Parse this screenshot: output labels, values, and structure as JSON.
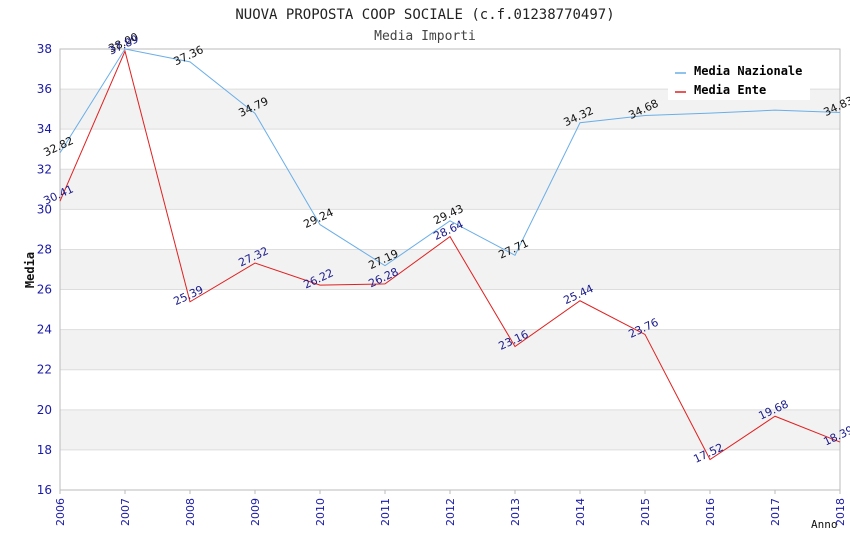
{
  "chart_data": {
    "type": "line",
    "title": "NUOVA PROPOSTA COOP SOCIALE (c.f.01238770497)",
    "subtitle": "Media Importi",
    "xlabel": "Anno",
    "ylabel": "Media",
    "ylim": [
      16,
      38
    ],
    "yticks": [
      "16",
      "18",
      "20",
      "22",
      "24",
      "26",
      "28",
      "30",
      "32",
      "34",
      "36",
      "38"
    ],
    "categories": [
      "2006",
      "2007",
      "2008",
      "2009",
      "2010",
      "2011",
      "2012",
      "2013",
      "2014",
      "2015",
      "2016",
      "2017",
      "2018"
    ],
    "grid": true,
    "legend_position": "top-right",
    "series": [
      {
        "name": "Media Nazionale",
        "color": "#6aaee8",
        "values": [
          32.82,
          38.0,
          37.36,
          34.79,
          29.24,
          27.19,
          29.43,
          27.71,
          34.32,
          34.68,
          34.8,
          34.95,
          34.83
        ],
        "labels": [
          "32.82",
          "38.00",
          "37.36",
          "34.79",
          "29.24",
          "27.19",
          "29.43",
          "27.71",
          "34.32",
          "34.68",
          "",
          "",
          "34.83"
        ]
      },
      {
        "name": "Media Ente",
        "color": "#e02020",
        "values": [
          30.41,
          37.89,
          25.39,
          27.32,
          26.22,
          26.28,
          28.64,
          23.16,
          25.44,
          23.76,
          17.52,
          19.68,
          18.39
        ],
        "labels": [
          "30.41",
          "37.89",
          "25.39",
          "27.32",
          "26.22",
          "26.28",
          "28.64",
          "23.16",
          "25.44",
          "23.76",
          "17.52",
          "19.68",
          "18.39"
        ]
      }
    ]
  }
}
